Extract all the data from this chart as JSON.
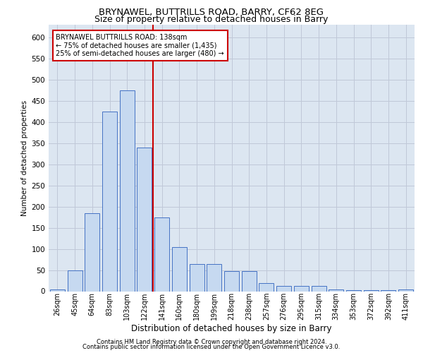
{
  "title1": "BRYNAWEL, BUTTRILLS ROAD, BARRY, CF62 8EG",
  "title2": "Size of property relative to detached houses in Barry",
  "xlabel": "Distribution of detached houses by size in Barry",
  "ylabel": "Number of detached properties",
  "categories": [
    "26sqm",
    "45sqm",
    "64sqm",
    "83sqm",
    "103sqm",
    "122sqm",
    "141sqm",
    "160sqm",
    "180sqm",
    "199sqm",
    "218sqm",
    "238sqm",
    "257sqm",
    "276sqm",
    "295sqm",
    "315sqm",
    "334sqm",
    "353sqm",
    "372sqm",
    "392sqm",
    "411sqm"
  ],
  "values": [
    5,
    50,
    185,
    425,
    475,
    340,
    175,
    105,
    65,
    65,
    47,
    47,
    20,
    13,
    13,
    13,
    5,
    3,
    2,
    2,
    5
  ],
  "bar_color": "#c6d9f0",
  "bar_edge_color": "#4472c4",
  "vline_color": "#cc0000",
  "annotation_text": "BRYNAWEL BUTTRILLS ROAD: 138sqm\n← 75% of detached houses are smaller (1,435)\n25% of semi-detached houses are larger (480) →",
  "annotation_box_color": "#cc0000",
  "ylim": [
    0,
    630
  ],
  "yticks": [
    0,
    50,
    100,
    150,
    200,
    250,
    300,
    350,
    400,
    450,
    500,
    550,
    600
  ],
  "grid_color": "#c0c8d8",
  "background_color": "#dce6f1",
  "footer1": "Contains HM Land Registry data © Crown copyright and database right 2024.",
  "footer2": "Contains public sector information licensed under the Open Government Licence v3.0."
}
